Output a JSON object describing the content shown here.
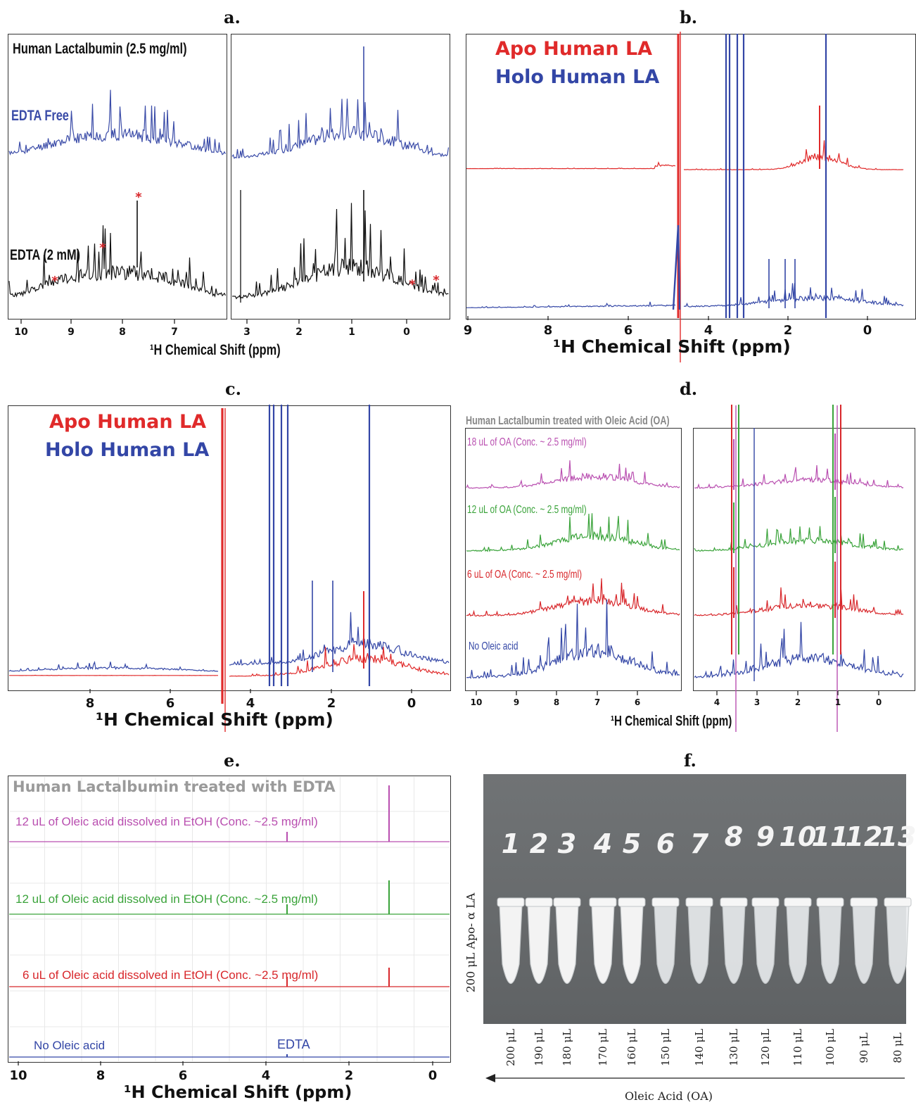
{
  "panels": {
    "a": {
      "letter": "a.",
      "title": "Human Lactalbumin (2.5 mg/ml)",
      "traces": [
        {
          "name": "EDTA Free",
          "color": "#3b4ca8"
        },
        {
          "name": "EDTA (2 mM)",
          "color": "#111111"
        }
      ],
      "marker": "*",
      "marker_color": "#d8272b",
      "xlabel": "¹H Chemical Shift (ppm)",
      "left_ticks": [
        "10",
        "9",
        "8",
        "7"
      ],
      "right_ticks": [
        "3",
        "2",
        "1",
        "0"
      ]
    },
    "b": {
      "letter": "b.",
      "legend": [
        {
          "name": "Apo Human LA",
          "color": "#e02a2a"
        },
        {
          "name": "Holo Human LA",
          "color": "#3346a6"
        }
      ],
      "xlabel": "¹H Chemical Shift (ppm)",
      "ticks": [
        "9",
        "8",
        "6",
        "4",
        "2",
        "0"
      ]
    },
    "c": {
      "letter": "c.",
      "legend": [
        {
          "name": "Apo Human LA",
          "color": "#e02a2a"
        },
        {
          "name": "Holo Human LA",
          "color": "#3346a6"
        }
      ],
      "xlabel": "¹H Chemical Shift (ppm)",
      "ticks": [
        "8",
        "6",
        "4",
        "2",
        "0"
      ]
    },
    "d": {
      "letter": "d.",
      "title": "Human Lactalbumin treated with Oleic Acid (OA)",
      "traces": [
        {
          "name": "18 uL of  OA (Conc. ~ 2.5 mg/ml)",
          "color": "#b94fb0"
        },
        {
          "name": "12 uL of OA (Conc. ~ 2.5 mg/ml)",
          "color": "#3aa33a"
        },
        {
          "name": "6 uL of OA (Conc. ~ 2.5 mg/ml)",
          "color": "#d8272b"
        },
        {
          "name": "No Oleic acid",
          "color": "#3346a6"
        }
      ],
      "xlabel": "¹H Chemical Shift (ppm)",
      "left_ticks": [
        "10",
        "9",
        "8",
        "7",
        "6"
      ],
      "right_ticks": [
        "4",
        "3",
        "2",
        "1",
        "0"
      ]
    },
    "e": {
      "letter": "e.",
      "title": "Human Lactalbumin treated with EDTA",
      "traces": [
        {
          "name": "12 uL of Oleic acid dissolved in EtOH (Conc. ~2.5 mg/ml)",
          "color": "#b94fb0"
        },
        {
          "name": "12 uL of Oleic acid dissolved in EtOH (Conc. ~2.5 mg/ml)",
          "color": "#3aa33a"
        },
        {
          "name": "6 uL of Oleic acid dissolved in EtOH (Conc. ~2.5 mg/ml)",
          "color": "#d8272b"
        },
        {
          "name": "No Oleic acid",
          "color": "#3346a6"
        }
      ],
      "annotation": "EDTA",
      "xlabel": "¹H Chemical Shift (ppm)",
      "ticks": [
        "10",
        "8",
        "6",
        "4",
        "2",
        "0"
      ]
    },
    "f": {
      "letter": "f.",
      "tube_numbers": [
        "1",
        "2",
        "3",
        "4",
        "5",
        "6",
        "7",
        "8",
        "9",
        "10",
        "11",
        "12",
        "13"
      ],
      "volumes": [
        "200 μL",
        "190 μL",
        "180 μL",
        "170 μL",
        "160 μL",
        "150 μL",
        "140 μL",
        "130 μL",
        "120 μL",
        "110 μL",
        "100 μL",
        "90 μL",
        "80 μL"
      ],
      "ylabel": "200 μL Apo- α LA",
      "xlabel": "Oleic Acid (OA)"
    }
  }
}
